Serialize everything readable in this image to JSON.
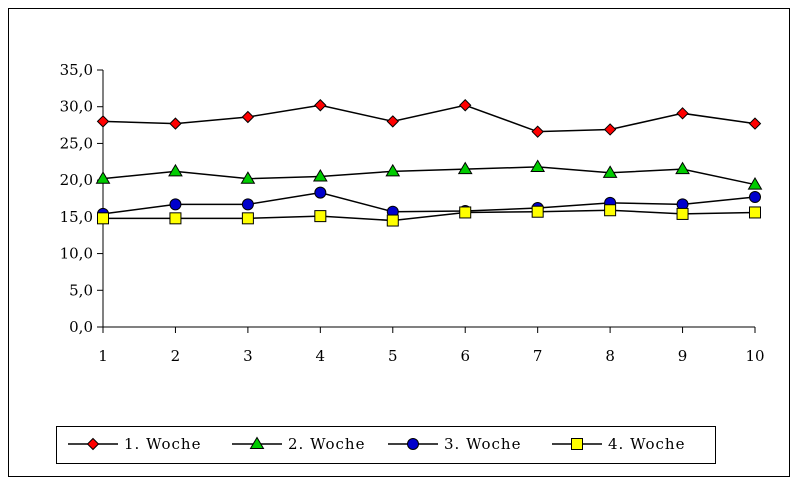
{
  "chart_data": {
    "type": "line",
    "title": "",
    "xlabel": "",
    "ylabel": "",
    "x": [
      1,
      2,
      3,
      4,
      5,
      6,
      7,
      8,
      9,
      10
    ],
    "x_tick_labels": [
      "1",
      "2",
      "3",
      "4",
      "5",
      "6",
      "7",
      "8",
      "9",
      "10"
    ],
    "ylim": [
      0,
      35
    ],
    "y_ticks": [
      0,
      5,
      10,
      15,
      20,
      25,
      30,
      35
    ],
    "y_tick_labels": [
      "0,0",
      "5,0",
      "10,0",
      "15,0",
      "20,0",
      "25,0",
      "30,0",
      "35,0"
    ],
    "grid": false,
    "legend_position": "bottom-left",
    "series": [
      {
        "name": "1. Woche",
        "marker": "diamond",
        "color": "#ff0000",
        "values": [
          28.0,
          27.7,
          28.6,
          30.2,
          28.0,
          30.2,
          26.6,
          26.9,
          29.1,
          27.7
        ]
      },
      {
        "name": "2. Woche",
        "marker": "triangle",
        "color": "#00cc00",
        "values": [
          20.2,
          21.2,
          20.2,
          20.5,
          21.2,
          21.5,
          21.8,
          21.0,
          21.5,
          19.4
        ]
      },
      {
        "name": "3. Woche",
        "marker": "circle",
        "color": "#0000cc",
        "values": [
          15.4,
          16.7,
          16.7,
          18.3,
          15.7,
          15.8,
          16.2,
          16.9,
          16.7,
          17.7
        ]
      },
      {
        "name": "4. Woche",
        "marker": "square",
        "color": "#ffff00",
        "values": [
          14.8,
          14.8,
          14.8,
          15.1,
          14.5,
          15.6,
          15.7,
          15.9,
          15.4,
          15.6
        ]
      }
    ]
  }
}
